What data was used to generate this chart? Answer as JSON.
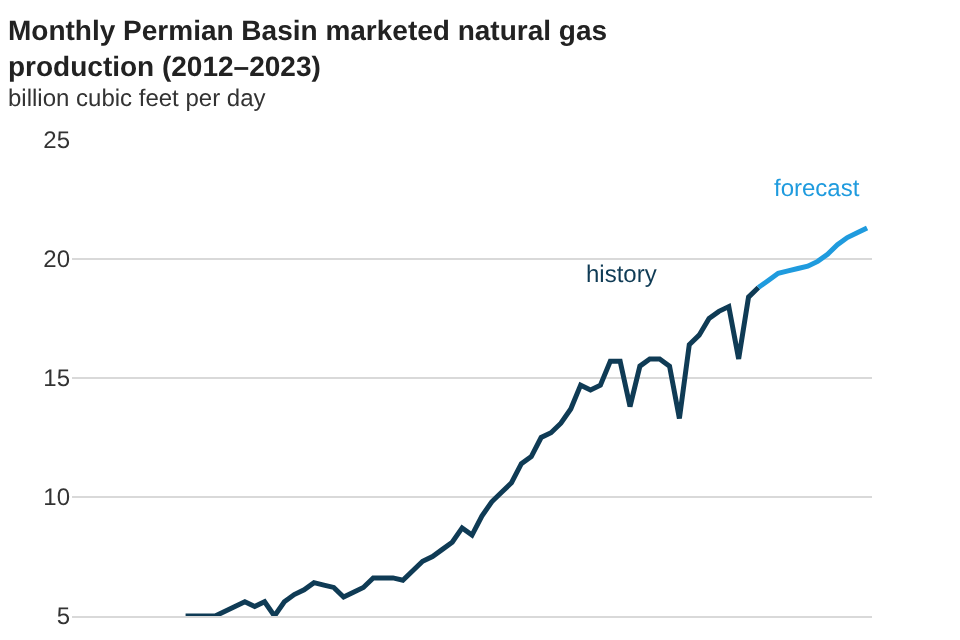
{
  "chart_data": {
    "type": "line",
    "title": "Monthly Permian Basin marketed natural gas\nproduction (2012–2023)",
    "ylabel": "billion cubic feet per day",
    "categories": [
      null,
      null,
      null,
      null,
      null,
      null,
      null,
      null,
      null,
      null,
      null,
      null,
      null,
      null,
      null,
      null,
      null,
      null,
      null,
      null,
      null,
      null,
      null,
      null,
      null,
      null,
      null,
      null,
      null,
      null,
      null,
      null,
      null,
      null,
      null,
      null,
      null,
      null,
      null,
      null,
      null,
      null,
      null,
      null,
      null,
      null,
      null,
      null,
      null,
      null,
      null,
      null,
      null,
      null,
      null,
      null,
      null,
      null,
      null,
      null,
      null,
      null,
      null,
      null,
      null,
      null,
      null,
      null,
      null,
      null,
      null,
      null,
      null,
      null,
      null,
      null,
      null,
      null,
      null,
      null,
      null
    ],
    "series": [
      {
        "name": "history",
        "color": "#0f3b55",
        "values": [
          null,
          null,
          null,
          null,
          null,
          null,
          null,
          null,
          null,
          null,
          null,
          5.0,
          5.0,
          5.0,
          5.0,
          5.2,
          5.4,
          5.6,
          5.4,
          5.6,
          5.0,
          5.6,
          5.9,
          6.1,
          6.4,
          6.3,
          6.2,
          5.8,
          6.0,
          6.2,
          6.6,
          6.6,
          6.6,
          6.5,
          6.9,
          7.3,
          7.5,
          7.8,
          8.1,
          8.7,
          8.4,
          9.2,
          9.8,
          10.2,
          10.6,
          11.4,
          11.7,
          12.5,
          12.7,
          13.1,
          13.7,
          14.7,
          14.5,
          14.7,
          15.7,
          15.7,
          13.8,
          15.5,
          15.8,
          15.8,
          15.5,
          13.3,
          16.4,
          16.8,
          17.5,
          17.8,
          18.0,
          15.8,
          18.4,
          18.8,
          null,
          null,
          null,
          null,
          null,
          null,
          null,
          null,
          null,
          null,
          null
        ]
      },
      {
        "name": "forecast",
        "color": "#1f9bde",
        "values": [
          null,
          null,
          null,
          null,
          null,
          null,
          null,
          null,
          null,
          null,
          null,
          null,
          null,
          null,
          null,
          null,
          null,
          null,
          null,
          null,
          null,
          null,
          null,
          null,
          null,
          null,
          null,
          null,
          null,
          null,
          null,
          null,
          null,
          null,
          null,
          null,
          null,
          null,
          null,
          null,
          null,
          null,
          null,
          null,
          null,
          null,
          null,
          null,
          null,
          null,
          null,
          null,
          null,
          null,
          null,
          null,
          null,
          null,
          null,
          null,
          null,
          null,
          null,
          null,
          null,
          null,
          null,
          null,
          null,
          18.8,
          19.1,
          19.4,
          19.5,
          19.6,
          19.7,
          19.9,
          20.2,
          20.6,
          20.9,
          21.1,
          21.3
        ]
      }
    ],
    "ylim": [
      5,
      25
    ],
    "yticks": [
      5,
      10,
      15,
      20,
      25
    ],
    "grid": "y",
    "legend": false,
    "tick_labels": "y",
    "marker": "none",
    "line_style": "solid"
  }
}
